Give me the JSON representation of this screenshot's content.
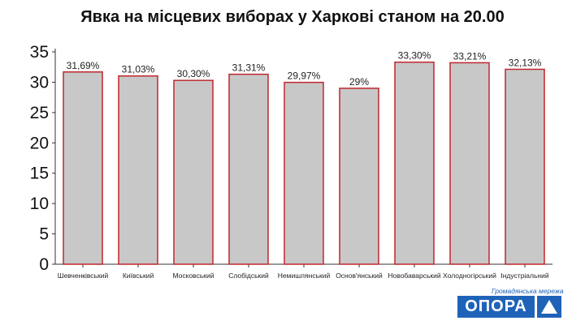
{
  "chart_data": {
    "type": "bar",
    "title": "Явка на місцевих виборах у Харкові станом на 20.00",
    "categories": [
      "Шевченківський",
      "Київський",
      "Московський",
      "Слобідський",
      "Немишлянський",
      "Основ'янський",
      "Новобаварський",
      "Холодногірський",
      "Індустріальний"
    ],
    "values": [
      31.69,
      31.03,
      30.3,
      31.31,
      29.97,
      29,
      33.3,
      33.21,
      32.13
    ],
    "data_labels": [
      "31,69%",
      "31,03%",
      "30,30%",
      "31,31%",
      "29,97%",
      "29%",
      "33,30%",
      "33,21%",
      "32,13%"
    ],
    "yticks": [
      "0",
      "5",
      "10",
      "15",
      "20",
      "25",
      "30",
      "35"
    ],
    "ylim": [
      0,
      35
    ],
    "grid": false,
    "bar_fill": "#c8c8c8",
    "bar_stroke": "#c0272d"
  },
  "logo": {
    "subtitle": "Громадянська мережа",
    "name": "ОПОРА",
    "color": "#1f63b8"
  }
}
